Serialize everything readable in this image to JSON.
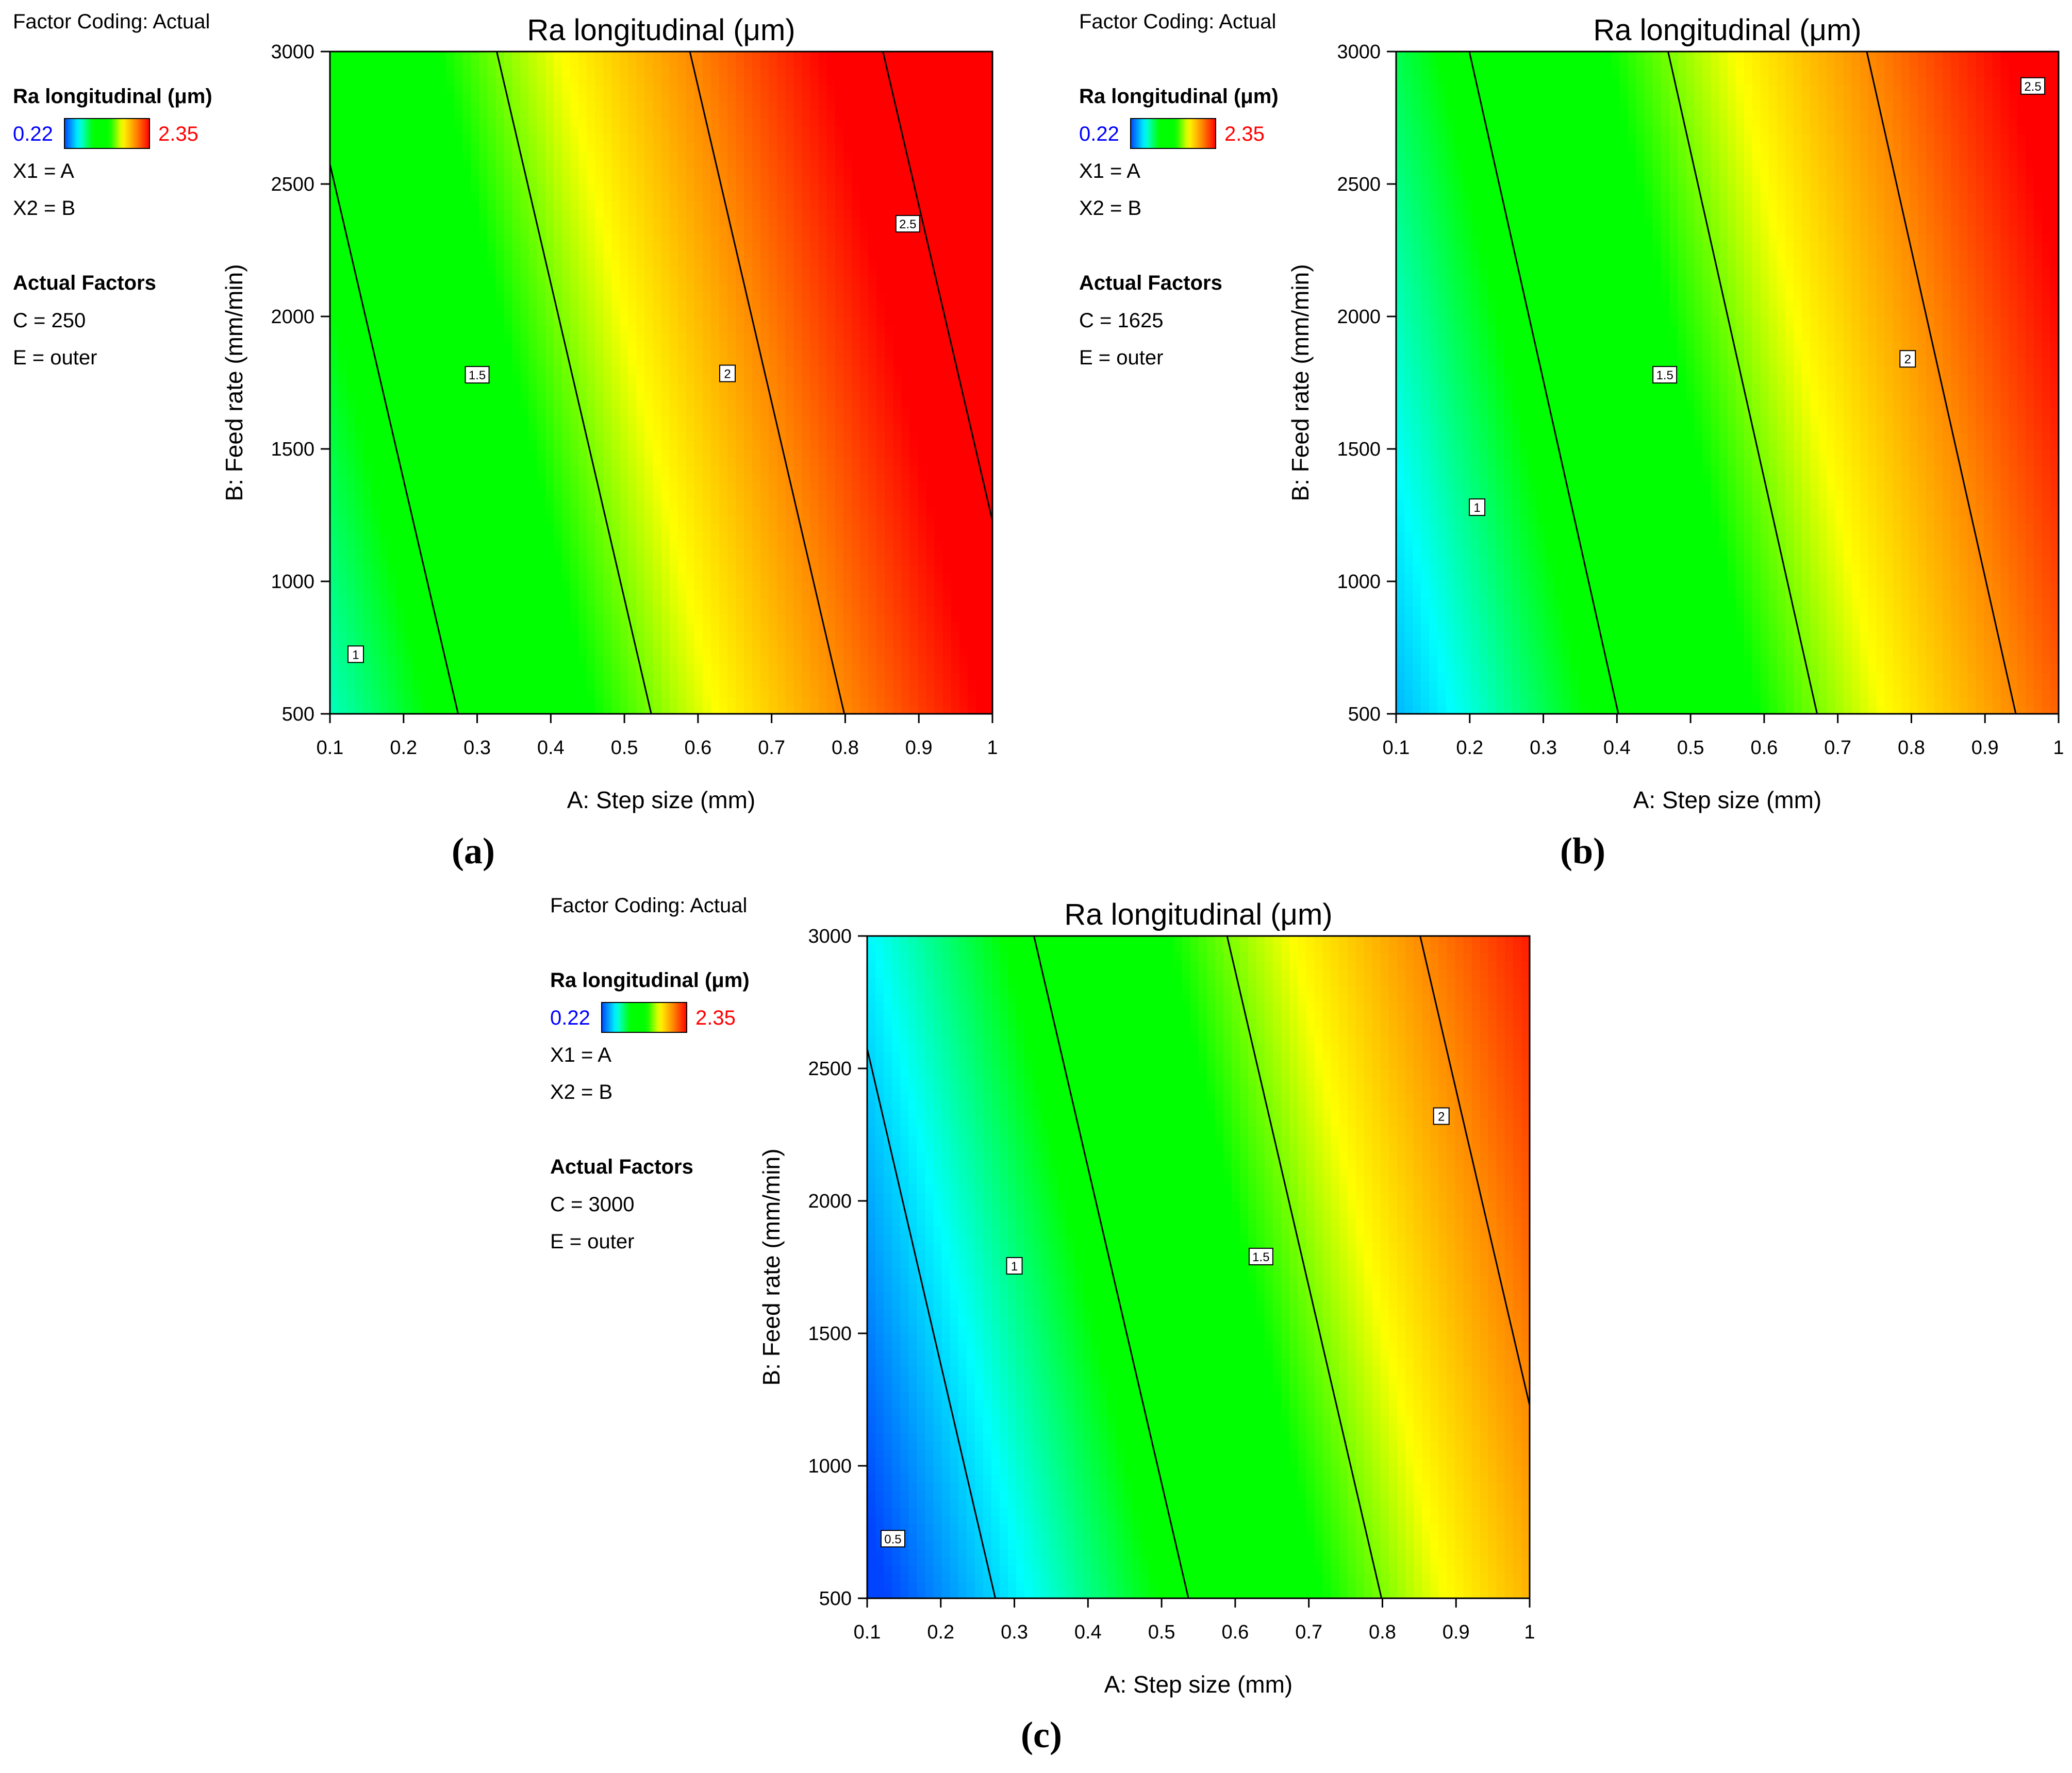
{
  "chart_data": [
    {
      "id": "a",
      "type": "heatmap",
      "subtype": "contour",
      "panel_label": "(a)",
      "title": "Ra longitudinal (μm)",
      "xlabel": "A: Step size (mm)",
      "ylabel": "B: Feed rate (mm/min)",
      "xlim": [
        0.1,
        1
      ],
      "ylim": [
        500,
        3000
      ],
      "x_ticks": [
        0.1,
        0.2,
        0.3,
        0.4,
        0.5,
        0.6,
        0.7,
        0.8,
        0.9,
        1
      ],
      "x_tick_labels": [
        "0.1",
        "0.2",
        "0.3",
        "0.4",
        "0.5",
        "0.6",
        "0.7",
        "0.8",
        "0.9",
        "1"
      ],
      "y_ticks": [
        500,
        1000,
        1500,
        2000,
        2500,
        3000
      ],
      "y_tick_labels": [
        "500",
        "1000",
        "1500",
        "2000",
        "2500",
        "3000"
      ],
      "surface": {
        "intercept": 0.3975,
        "a_coef": 1.906,
        "b_coef": 0.00016
      },
      "contours": [
        {
          "level": 1,
          "label": "1",
          "label_at": [
            0.135,
            725
          ]
        },
        {
          "level": 1.5,
          "label": "1.5",
          "label_at": [
            0.3,
            1780
          ]
        },
        {
          "level": 2,
          "label": "2",
          "label_at": [
            0.64,
            1785
          ]
        },
        {
          "level": 2.5,
          "label": "2.5",
          "label_at": [
            0.885,
            2350
          ]
        }
      ],
      "legend": {
        "factor_coding": "Factor Coding: Actual",
        "response": "Ra longitudinal (μm)",
        "scale_min": "0.22",
        "scale_max": "2.35",
        "x1": "X1 = A",
        "x2": "X2 = B",
        "actual_factors_title": "Actual Factors",
        "factor_c": "C = 250",
        "factor_e": "E = outer"
      }
    },
    {
      "id": "b",
      "type": "heatmap",
      "subtype": "contour",
      "panel_label": "(b)",
      "title": "Ra longitudinal (μm)",
      "xlabel": "A: Step size (mm)",
      "ylabel": "B: Feed rate (mm/min)",
      "xlim": [
        0.1,
        1
      ],
      "ylim": [
        500,
        3000
      ],
      "x_ticks": [
        0.1,
        0.2,
        0.3,
        0.4,
        0.5,
        0.6,
        0.7,
        0.8,
        0.9,
        1
      ],
      "x_tick_labels": [
        "0.1",
        "0.2",
        "0.3",
        "0.4",
        "0.5",
        "0.6",
        "0.7",
        "0.8",
        "0.9",
        "1"
      ],
      "y_ticks": [
        500,
        1000,
        1500,
        2000,
        2500,
        3000
      ],
      "y_tick_labels": [
        "500",
        "1000",
        "1500",
        "2000",
        "2500",
        "3000"
      ],
      "surface": {
        "intercept": 0.1806,
        "a_coef": 1.852,
        "b_coef": 0.00015
      },
      "contours": [
        {
          "level": 1,
          "label": "1",
          "label_at": [
            0.21,
            1280
          ]
        },
        {
          "level": 1.5,
          "label": "1.5",
          "label_at": [
            0.465,
            1780
          ]
        },
        {
          "level": 2,
          "label": "2",
          "label_at": [
            0.795,
            1840
          ]
        },
        {
          "level": 2.5,
          "label": "2.5",
          "label_at": [
            0.965,
            2870
          ]
        }
      ],
      "legend": {
        "factor_coding": "Factor Coding: Actual",
        "response": "Ra longitudinal (μm)",
        "scale_min": "0.22",
        "scale_max": "2.35",
        "x1": "X1 = A",
        "x2": "X2 = B",
        "actual_factors_title": "Actual Factors",
        "factor_c": "C = 1625",
        "factor_e": "E = outer"
      }
    },
    {
      "id": "c",
      "type": "heatmap",
      "subtype": "contour",
      "panel_label": "(c)",
      "title": "Ra longitudinal (μm)",
      "xlabel": "A: Step size (mm)",
      "ylabel": "B: Feed rate (mm/min)",
      "xlim": [
        0.1,
        1
      ],
      "ylim": [
        500,
        3000
      ],
      "x_ticks": [
        0.1,
        0.2,
        0.3,
        0.4,
        0.5,
        0.6,
        0.7,
        0.8,
        0.9,
        1
      ],
      "x_tick_labels": [
        "0.1",
        "0.2",
        "0.3",
        "0.4",
        "0.5",
        "0.6",
        "0.7",
        "0.8",
        "0.9",
        "1"
      ],
      "y_ticks": [
        500,
        1000,
        1500,
        2000,
        2500,
        3000
      ],
      "y_tick_labels": [
        "500",
        "1000",
        "1500",
        "2000",
        "2500",
        "3000"
      ],
      "surface": {
        "intercept": -0.1025,
        "a_coef": 1.906,
        "b_coef": 0.00016
      },
      "contours": [
        {
          "level": 0.5,
          "label": "0.5",
          "label_at": [
            0.135,
            725
          ]
        },
        {
          "level": 1,
          "label": "1",
          "label_at": [
            0.3,
            1755
          ]
        },
        {
          "level": 1.5,
          "label": "1.5",
          "label_at": [
            0.635,
            1790
          ]
        },
        {
          "level": 2,
          "label": "2",
          "label_at": [
            0.88,
            2320
          ]
        }
      ],
      "legend": {
        "factor_coding": "Factor Coding: Actual",
        "response": "Ra longitudinal (μm)",
        "scale_min": "0.22",
        "scale_max": "2.35",
        "x1": "X1 = A",
        "x2": "X2 = B",
        "actual_factors_title": "Actual Factors",
        "factor_c": "C = 3000",
        "factor_e": "E = outer"
      }
    }
  ],
  "colors": {
    "scale_min_text": "#0000ff",
    "scale_max_text": "#ff0000",
    "contour_line": "#000000",
    "colormap": [
      "#0044ff",
      "#00ffff",
      "#00ff00",
      "#00ff00",
      "#ffff00",
      "#ff8800",
      "#ff0000"
    ]
  }
}
